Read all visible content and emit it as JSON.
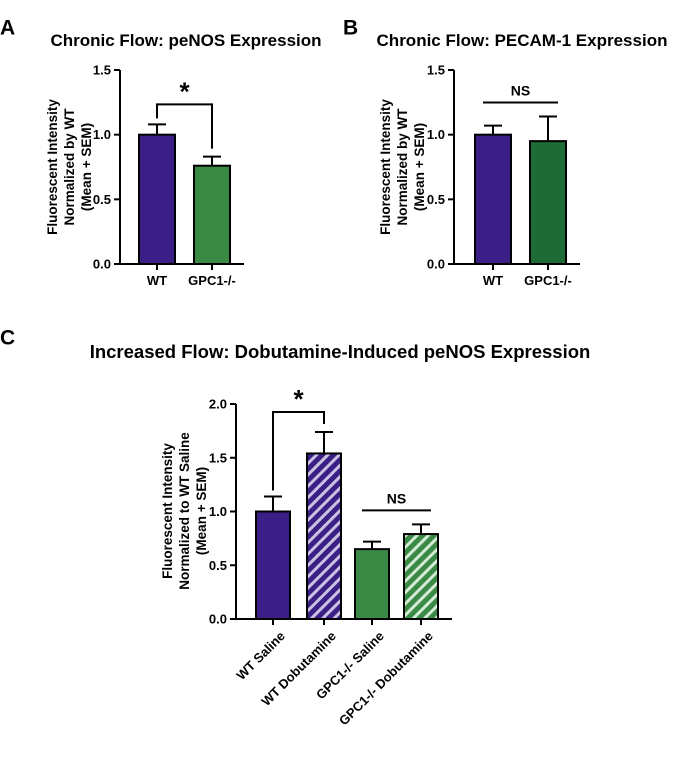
{
  "chart_data": [
    {
      "id": "A",
      "panel_label": "A",
      "type": "bar",
      "title": "Chronic Flow: peNOS Expression",
      "ylabel_lines": [
        "Fluorescent Intensity",
        "Normalized by WT",
        "(Mean + SEM)"
      ],
      "categories": [
        "WT",
        "GPC1-/-"
      ],
      "values": [
        1.0,
        0.76
      ],
      "errors": [
        0.08,
        0.07
      ],
      "colors": [
        "#3c1f86",
        "#3a8a45"
      ],
      "patterns": [
        "solid",
        "solid"
      ],
      "ylim": [
        0,
        1.5
      ],
      "yticks": [
        0.0,
        0.5,
        1.0,
        1.5
      ],
      "ytick_labels": [
        "0.0",
        "0.5",
        "1.0",
        "1.5"
      ],
      "significance": [
        {
          "from": 0,
          "to": 1,
          "label": "*",
          "style": "hook"
        }
      ]
    },
    {
      "id": "B",
      "panel_label": "B",
      "type": "bar",
      "title": "Chronic Flow: PECAM-1 Expression",
      "ylabel_lines": [
        "Fluorescent Intensity",
        "Normalized by WT",
        "(Mean + SEM)"
      ],
      "categories": [
        "WT",
        "GPC1-/-"
      ],
      "values": [
        1.0,
        0.95
      ],
      "errors": [
        0.07,
        0.19
      ],
      "colors": [
        "#3c1f86",
        "#1f6b35"
      ],
      "patterns": [
        "solid",
        "solid"
      ],
      "ylim": [
        0,
        1.5
      ],
      "yticks": [
        0.0,
        0.5,
        1.0,
        1.5
      ],
      "ytick_labels": [
        "0.0",
        "0.5",
        "1.0",
        "1.5"
      ],
      "significance": [
        {
          "from": 0,
          "to": 1,
          "label": "NS",
          "style": "line"
        }
      ]
    },
    {
      "id": "C",
      "panel_label": "C",
      "type": "bar",
      "title": "Increased Flow: Dobutamine-Induced peNOS Expression",
      "ylabel_lines": [
        "Fluorescent Intensity",
        "Normalized to WT Saline",
        "(Mean + SEM)"
      ],
      "categories": [
        "WT Saline",
        "WT Dobutamine",
        "GPC1-/- Saline",
        "GPC1-/- Dobutamine"
      ],
      "values": [
        1.0,
        1.54,
        0.65,
        0.79
      ],
      "errors": [
        0.14,
        0.2,
        0.07,
        0.09
      ],
      "colors": [
        "#3c1f86",
        "#3c1f86",
        "#3a8a45",
        "#3a8a45"
      ],
      "patterns": [
        "solid",
        "hatched",
        "solid",
        "hatched"
      ],
      "ylim": [
        0,
        2.0
      ],
      "yticks": [
        0.0,
        0.5,
        1.0,
        1.5,
        2.0
      ],
      "ytick_labels": [
        "0.0",
        "0.5",
        "1.0",
        "1.5",
        "2.0"
      ],
      "significance": [
        {
          "from": 0,
          "to": 1,
          "label": "*",
          "style": "hook"
        },
        {
          "from": 2,
          "to": 3,
          "label": "NS",
          "style": "line"
        }
      ]
    }
  ]
}
